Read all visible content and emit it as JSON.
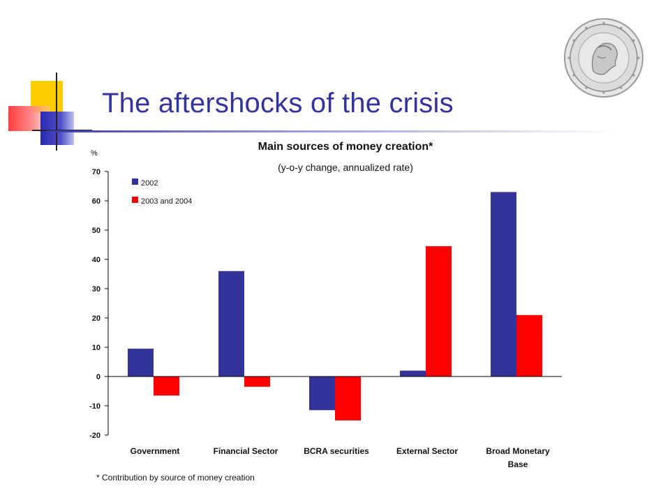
{
  "slide": {
    "title": "The aftershocks of the crisis",
    "footnote": "* Contribution by source of money creation"
  },
  "colors": {
    "series_2002": "#333399",
    "series_2003_2004": "#ff0000",
    "title": "#3333a0"
  },
  "chart_data": {
    "type": "bar",
    "title": "Main sources of money creation*",
    "subtitle": "(y-o-y change, annualized rate)",
    "unit": "%",
    "xlabel": "",
    "ylabel": "",
    "ylim": [
      -20,
      70
    ],
    "yticks": [
      70,
      60,
      50,
      40,
      30,
      20,
      10,
      0,
      -10,
      -20
    ],
    "grid": false,
    "legend_position": "top-left",
    "categories": [
      "Government",
      "Financial Sector",
      "BCRA securities",
      "External Sector",
      "Broad Monetary Base"
    ],
    "category_lines": [
      [
        "Government"
      ],
      [
        "Financial Sector"
      ],
      [
        "BCRA securities"
      ],
      [
        "External Sector"
      ],
      [
        "Broad Monetary",
        "Base"
      ]
    ],
    "series": [
      {
        "name": "2002",
        "color": "#333399",
        "values": [
          9.5,
          36,
          -11.5,
          2,
          63
        ]
      },
      {
        "name": "2003 and 2004",
        "color": "#ff0000",
        "values": [
          -6.5,
          -3.5,
          -15,
          44.5,
          21
        ]
      }
    ]
  }
}
